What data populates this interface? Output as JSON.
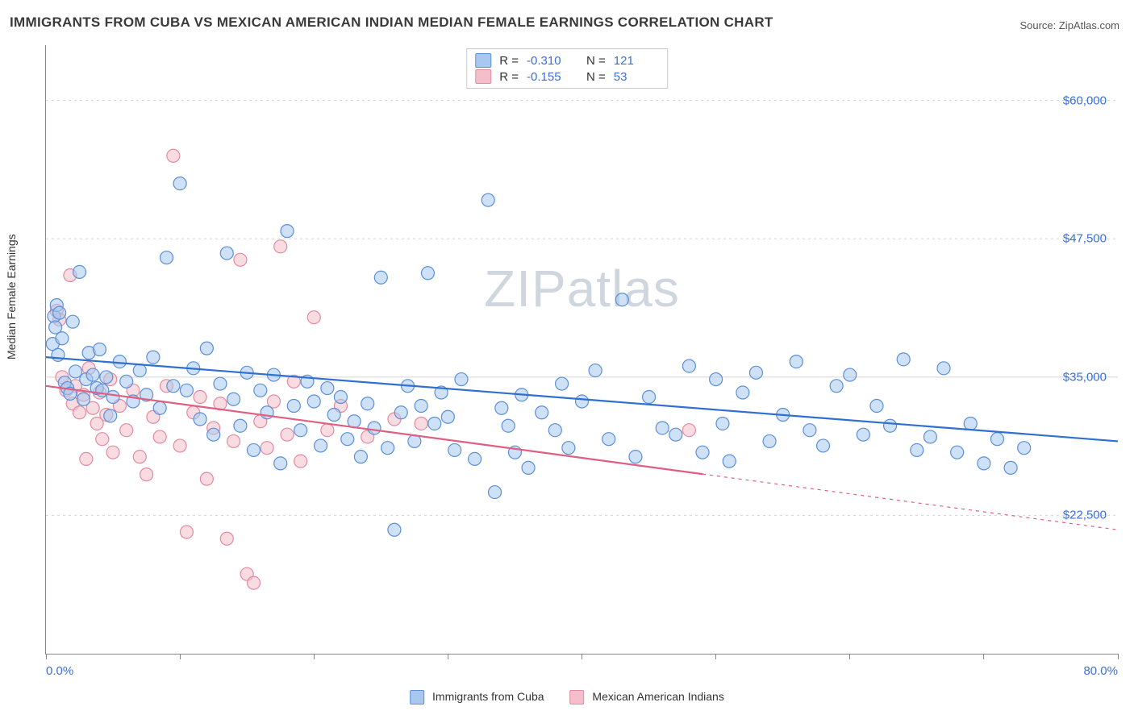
{
  "title": "IMMIGRANTS FROM CUBA VS MEXICAN AMERICAN INDIAN MEDIAN FEMALE EARNINGS CORRELATION CHART",
  "source": "Source: ZipAtlas.com",
  "ylabel": "Median Female Earnings",
  "watermark": "ZIPatlas",
  "chart": {
    "type": "scatter",
    "xlim": [
      0,
      80
    ],
    "ylim": [
      10000,
      65000
    ],
    "x_tick_positions": [
      0,
      10,
      20,
      30,
      40,
      50,
      60,
      70,
      80
    ],
    "x_tick_labels": {
      "0": "0.0%",
      "80": "80.0%"
    },
    "y_gridlines": [
      22500,
      35000,
      47500,
      60000
    ],
    "y_gridlines_dashed": [
      22500,
      47500,
      60000
    ],
    "y_gridlines_solid": [
      35000
    ],
    "y_tick_labels": [
      "$22,500",
      "$35,000",
      "$47,500",
      "$60,000"
    ],
    "background_color": "#ffffff",
    "grid_color": "#d4d4d4",
    "axis_color": "#888888",
    "axis_value_color": "#3b6fd6",
    "tick_fontsize": 15,
    "ylabel_fontsize": 14,
    "marker_radius": 8,
    "marker_stroke_width": 1.2,
    "trend_line_width": 2.2
  },
  "series": [
    {
      "label": "Immigrants from Cuba",
      "fill_color": "#a8c8ef",
      "stroke_color": "#5b8fd6",
      "fill_opacity": 0.55,
      "trend_color": "#2f6fd0",
      "trend": {
        "x1": 0,
        "y1": 36800,
        "x2": 80,
        "y2": 29200,
        "solid_until_x": 80
      },
      "R": "-0.310",
      "N": "121",
      "points": [
        [
          0.5,
          38000
        ],
        [
          0.6,
          40500
        ],
        [
          0.7,
          39500
        ],
        [
          0.8,
          41500
        ],
        [
          0.9,
          37000
        ],
        [
          1.0,
          40800
        ],
        [
          1.2,
          38500
        ],
        [
          1.4,
          34500
        ],
        [
          1.6,
          34000
        ],
        [
          1.8,
          33500
        ],
        [
          2.0,
          40000
        ],
        [
          2.2,
          35500
        ],
        [
          2.5,
          44500
        ],
        [
          2.8,
          33000
        ],
        [
          3.0,
          34800
        ],
        [
          3.2,
          37200
        ],
        [
          3.5,
          35200
        ],
        [
          3.8,
          34000
        ],
        [
          4.0,
          37500
        ],
        [
          4.2,
          33800
        ],
        [
          4.5,
          35000
        ],
        [
          4.8,
          31500
        ],
        [
          5.0,
          33200
        ],
        [
          5.5,
          36400
        ],
        [
          6.0,
          34600
        ],
        [
          6.5,
          32800
        ],
        [
          7.0,
          35600
        ],
        [
          7.5,
          33400
        ],
        [
          8.0,
          36800
        ],
        [
          8.5,
          32200
        ],
        [
          9.0,
          45800
        ],
        [
          9.5,
          34200
        ],
        [
          10.0,
          52500
        ],
        [
          10.5,
          33800
        ],
        [
          11.0,
          35800
        ],
        [
          11.5,
          31200
        ],
        [
          12.0,
          37600
        ],
        [
          12.5,
          29800
        ],
        [
          13.0,
          34400
        ],
        [
          13.5,
          46200
        ],
        [
          14.0,
          33000
        ],
        [
          14.5,
          30600
        ],
        [
          15.0,
          35400
        ],
        [
          15.5,
          28400
        ],
        [
          16.0,
          33800
        ],
        [
          16.5,
          31800
        ],
        [
          17.0,
          35200
        ],
        [
          17.5,
          27200
        ],
        [
          18.0,
          48200
        ],
        [
          18.5,
          32400
        ],
        [
          19.0,
          30200
        ],
        [
          19.5,
          34600
        ],
        [
          20.0,
          32800
        ],
        [
          20.5,
          28800
        ],
        [
          21.0,
          34000
        ],
        [
          21.5,
          31600
        ],
        [
          22.0,
          33200
        ],
        [
          22.5,
          29400
        ],
        [
          23.0,
          31000
        ],
        [
          23.5,
          27800
        ],
        [
          24.0,
          32600
        ],
        [
          24.5,
          30400
        ],
        [
          25.0,
          44000
        ],
        [
          25.5,
          28600
        ],
        [
          26.0,
          21200
        ],
        [
          26.5,
          31800
        ],
        [
          27.0,
          34200
        ],
        [
          27.5,
          29200
        ],
        [
          28.0,
          32400
        ],
        [
          28.5,
          44400
        ],
        [
          29.0,
          30800
        ],
        [
          29.5,
          33600
        ],
        [
          30.0,
          31400
        ],
        [
          30.5,
          28400
        ],
        [
          31.0,
          34800
        ],
        [
          32.0,
          27600
        ],
        [
          33.0,
          51000
        ],
        [
          33.5,
          24600
        ],
        [
          34.0,
          32200
        ],
        [
          34.5,
          30600
        ],
        [
          35.0,
          28200
        ],
        [
          35.5,
          33400
        ],
        [
          36.0,
          26800
        ],
        [
          37.0,
          31800
        ],
        [
          38.0,
          30200
        ],
        [
          38.5,
          34400
        ],
        [
          39.0,
          28600
        ],
        [
          40.0,
          32800
        ],
        [
          41.0,
          35600
        ],
        [
          42.0,
          29400
        ],
        [
          43.0,
          42000
        ],
        [
          44.0,
          27800
        ],
        [
          45.0,
          33200
        ],
        [
          46.0,
          30400
        ],
        [
          47.0,
          29800
        ],
        [
          48.0,
          36000
        ],
        [
          49.0,
          28200
        ],
        [
          50.0,
          34800
        ],
        [
          50.5,
          30800
        ],
        [
          51.0,
          27400
        ],
        [
          52.0,
          33600
        ],
        [
          53.0,
          35400
        ],
        [
          54.0,
          29200
        ],
        [
          55.0,
          31600
        ],
        [
          56.0,
          36400
        ],
        [
          57.0,
          30200
        ],
        [
          58.0,
          28800
        ],
        [
          59.0,
          34200
        ],
        [
          60.0,
          35200
        ],
        [
          61.0,
          29800
        ],
        [
          62.0,
          32400
        ],
        [
          63.0,
          30600
        ],
        [
          64.0,
          36600
        ],
        [
          65.0,
          28400
        ],
        [
          66.0,
          29600
        ],
        [
          67.0,
          35800
        ],
        [
          68.0,
          28200
        ],
        [
          69.0,
          30800
        ],
        [
          70.0,
          27200
        ],
        [
          71.0,
          29400
        ],
        [
          72.0,
          26800
        ],
        [
          73.0,
          28600
        ]
      ]
    },
    {
      "label": "Mexican American Indians",
      "fill_color": "#f4bfca",
      "stroke_color": "#e48aa0",
      "fill_opacity": 0.55,
      "trend_color": "#de5f82",
      "trend": {
        "x1": 0,
        "y1": 34200,
        "x2": 80,
        "y2": 21200,
        "solid_until_x": 49
      },
      "R": "-0.155",
      "N": "53",
      "points": [
        [
          0.8,
          41000
        ],
        [
          1.0,
          40200
        ],
        [
          1.2,
          35000
        ],
        [
          1.5,
          33800
        ],
        [
          1.8,
          44200
        ],
        [
          2.0,
          32600
        ],
        [
          2.2,
          34200
        ],
        [
          2.5,
          31800
        ],
        [
          2.8,
          33400
        ],
        [
          3.0,
          27600
        ],
        [
          3.2,
          35800
        ],
        [
          3.5,
          32200
        ],
        [
          3.8,
          30800
        ],
        [
          4.0,
          33600
        ],
        [
          4.2,
          29400
        ],
        [
          4.5,
          31600
        ],
        [
          4.8,
          34800
        ],
        [
          5.0,
          28200
        ],
        [
          5.5,
          32400
        ],
        [
          6.0,
          30200
        ],
        [
          6.5,
          33800
        ],
        [
          7.0,
          27800
        ],
        [
          7.5,
          26200
        ],
        [
          8.0,
          31400
        ],
        [
          8.5,
          29600
        ],
        [
          9.0,
          34200
        ],
        [
          9.5,
          55000
        ],
        [
          10.0,
          28800
        ],
        [
          10.5,
          21000
        ],
        [
          11.0,
          31800
        ],
        [
          11.5,
          33200
        ],
        [
          12.0,
          25800
        ],
        [
          12.5,
          30400
        ],
        [
          13.0,
          32600
        ],
        [
          13.5,
          20400
        ],
        [
          14.0,
          29200
        ],
        [
          14.5,
          45600
        ],
        [
          15.0,
          17200
        ],
        [
          15.5,
          16400
        ],
        [
          16.0,
          31000
        ],
        [
          16.5,
          28600
        ],
        [
          17.0,
          32800
        ],
        [
          17.5,
          46800
        ],
        [
          18.0,
          29800
        ],
        [
          18.5,
          34600
        ],
        [
          19.0,
          27400
        ],
        [
          20.0,
          40400
        ],
        [
          21.0,
          30200
        ],
        [
          22.0,
          32400
        ],
        [
          24.0,
          29600
        ],
        [
          26.0,
          31200
        ],
        [
          28.0,
          30800
        ],
        [
          48.0,
          30200
        ]
      ]
    }
  ]
}
